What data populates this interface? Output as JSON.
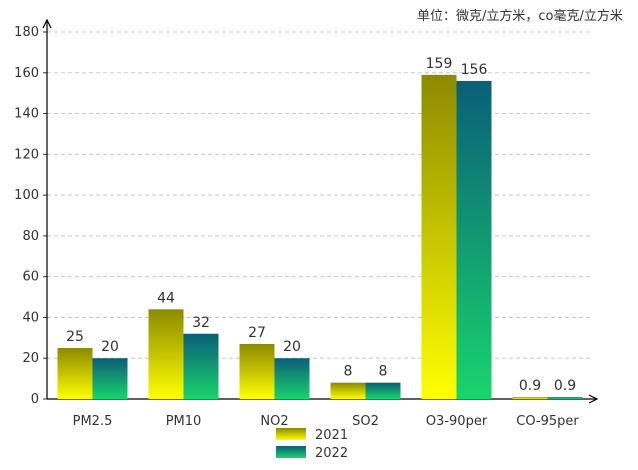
{
  "unit_note": "单位：微克/立方米，co毫克/立方米",
  "chart_data": {
    "type": "bar",
    "categories": [
      "PM2.5",
      "PM10",
      "NO2",
      "SO2",
      "O3-90per",
      "CO-95per"
    ],
    "series": [
      {
        "name": "2021",
        "values": [
          25,
          44,
          27,
          8,
          159,
          0.9
        ],
        "labels": [
          "25",
          "44",
          "27",
          "8",
          "159",
          "0.9"
        ],
        "color_top": "#8c8a00",
        "color_bottom": "#ffff00"
      },
      {
        "name": "2022",
        "values": [
          20,
          32,
          20,
          8,
          156,
          0.9
        ],
        "labels": [
          "20",
          "32",
          "20",
          "8",
          "156",
          "0.9"
        ],
        "color_top": "#0a5f78",
        "color_bottom": "#19d46c"
      }
    ],
    "yticks": [
      "0",
      "20",
      "40",
      "60",
      "80",
      "100",
      "120",
      "140",
      "160",
      "180"
    ],
    "ylim": [
      0,
      180
    ],
    "grid": true,
    "legend": "bottom-center"
  }
}
